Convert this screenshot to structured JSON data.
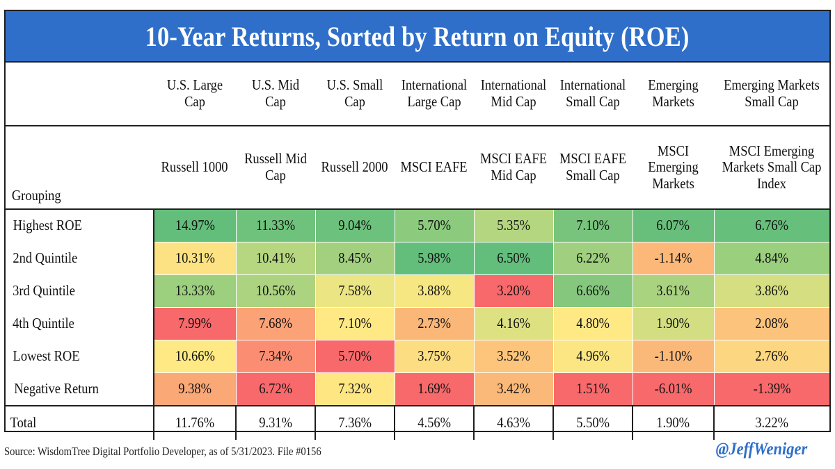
{
  "footer": {
    "source": "Source: WisdomTree Digital Portfolio Developer, as of 5/31/2023. File #0156",
    "handle": "@JeffWeniger"
  },
  "chart_data": {
    "type": "table",
    "title": "10-Year Returns, Sorted by Return on Equity (ROE)",
    "row_header_label": "Grouping",
    "columns": [
      {
        "category": "U.S. Large Cap",
        "index": "Russell 1000"
      },
      {
        "category": "U.S. Mid Cap",
        "index": "Russell Mid Cap"
      },
      {
        "category": "U.S. Small Cap",
        "index": "Russell 2000"
      },
      {
        "category": "International Large Cap",
        "index": "MSCI EAFE"
      },
      {
        "category": "International Mid Cap",
        "index": "MSCI EAFE Mid Cap"
      },
      {
        "category": "International Small Cap",
        "index": "MSCI EAFE Small Cap"
      },
      {
        "category": "Emerging Markets",
        "index": "MSCI Emerging Markets"
      },
      {
        "category": "Emerging Markets Small Cap",
        "index": "MSCI Emerging Markets Small Cap Index"
      }
    ],
    "rows": [
      {
        "label": "Highest ROE",
        "values": [
          "14.97%",
          "11.33%",
          "9.04%",
          "5.70%",
          "5.35%",
          "7.10%",
          "6.07%",
          "6.76%"
        ],
        "colors": [
          "#63be7b",
          "#6fc27c",
          "#6cc17c",
          "#8ccb7e",
          "#b5d680",
          "#78c47d",
          "#68bf7b",
          "#66bf7b"
        ]
      },
      {
        "label": "2nd Quintile",
        "values": [
          "10.31%",
          "10.41%",
          "8.45%",
          "5.98%",
          "6.50%",
          "6.22%",
          "-1.14%",
          "4.84%"
        ],
        "colors": [
          "#fce282",
          "#b6d780",
          "#a2d07f",
          "#63be7b",
          "#63be7b",
          "#a0d07f",
          "#fbb878",
          "#9acf7e"
        ]
      },
      {
        "label": "3rd Quintile",
        "values": [
          "13.33%",
          "10.56%",
          "7.58%",
          "3.88%",
          "3.20%",
          "6.66%",
          "3.61%",
          "3.86%"
        ],
        "colors": [
          "#9ccf7e",
          "#acd37f",
          "#ebe583",
          "#f7e783",
          "#f8696b",
          "#84c77d",
          "#a9d37f",
          "#d5df82"
        ]
      },
      {
        "label": "4th Quintile",
        "values": [
          "7.99%",
          "7.68%",
          "7.10%",
          "2.73%",
          "4.16%",
          "4.80%",
          "1.90%",
          "2.08%"
        ],
        "colors": [
          "#f8696b",
          "#fba276",
          "#ffe984",
          "#fbb778",
          "#dde182",
          "#ffe984",
          "#d2de81",
          "#fbc37b"
        ]
      },
      {
        "label": "Lowest ROE",
        "values": [
          "10.66%",
          "7.34%",
          "5.70%",
          "3.75%",
          "3.52%",
          "4.96%",
          "-1.10%",
          "2.76%"
        ],
        "colors": [
          "#ffe984",
          "#fb8e72",
          "#f8696b",
          "#fddd81",
          "#fcc57b",
          "#fbe683",
          "#fbb979",
          "#fcd680"
        ]
      },
      {
        "label": "Negative Return",
        "values": [
          "9.38%",
          "6.72%",
          "7.32%",
          "1.69%",
          "3.42%",
          "1.51%",
          "-6.01%",
          "-1.39%"
        ],
        "colors": [
          "#fba877",
          "#f8696b",
          "#fee683",
          "#f8696b",
          "#fbb979",
          "#f8696b",
          "#f8696b",
          "#f8696b"
        ]
      }
    ],
    "total": {
      "label": "Total",
      "values": [
        "11.76%",
        "9.31%",
        "7.36%",
        "4.56%",
        "4.63%",
        "5.50%",
        "1.90%",
        "3.22%"
      ]
    }
  }
}
